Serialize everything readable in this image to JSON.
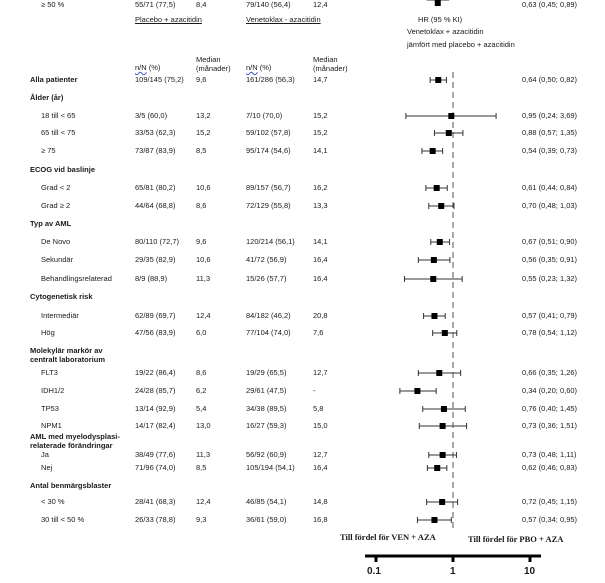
{
  "headers": {
    "placebo_group": "Placebo + azacitidin",
    "venetoclax_group": "Venetoklax - azacitidin",
    "nn_label": "n/N",
    "pct_label": " (%)",
    "median_label_1": "Median",
    "median_label_2": "(månader)",
    "hr_title": "HR (95 % KI)",
    "hr_sub1": "Venetoklax + azacitidin",
    "hr_sub2": "jämfört med placebo + azacitidin"
  },
  "favor_left": "Till fördel för VEN + AZA",
  "favor_right": "Till fördel för PBO + AZA",
  "chart_data": {
    "type": "forest",
    "title": "HR (95 % KI) Venetoklax + azacitidin jämfört med placebo + azacitidin",
    "xscale": "log",
    "xlim": [
      0.1,
      10
    ],
    "xticks": [
      "0.1",
      "1",
      "10"
    ],
    "reference_line": 1,
    "rows": [
      {
        "kind": "row",
        "label": "Alla patienter",
        "bold": true,
        "pbo_nn": "109/145 (75,2)",
        "pbo_med": "9,6",
        "ven_nn": "161/286 (56,3)",
        "ven_med": "14,7",
        "hr": 0.64,
        "lo": 0.5,
        "hi": 0.82,
        "hr_text": "0,64 (0,50; 0,82)"
      },
      {
        "kind": "group",
        "label": "Ålder (år)"
      },
      {
        "kind": "row",
        "label": "18 till < 65",
        "pbo_nn": "3/5 (60,0)",
        "pbo_med": "13,2",
        "ven_nn": "7/10 (70,0)",
        "ven_med": "15,2",
        "hr": 0.95,
        "lo": 0.24,
        "hi": 3.69,
        "hr_text": "0,95 (0,24; 3,69)"
      },
      {
        "kind": "row",
        "label": "65 till < 75",
        "pbo_nn": "33/53 (62,3)",
        "pbo_med": "15,2",
        "ven_nn": "59/102 (57,8)",
        "ven_med": "15,2",
        "hr": 0.88,
        "lo": 0.57,
        "hi": 1.35,
        "hr_text": "0,88 (0,57; 1,35)"
      },
      {
        "kind": "row",
        "label": "≥ 75",
        "pbo_nn": "73/87 (83,9)",
        "pbo_med": "8,5",
        "ven_nn": "95/174 (54,6)",
        "ven_med": "14,1",
        "hr": 0.54,
        "lo": 0.39,
        "hi": 0.73,
        "hr_text": "0,54 (0,39; 0,73)"
      },
      {
        "kind": "group",
        "label": "ECOG vid baslinje"
      },
      {
        "kind": "row",
        "label": "Grad < 2",
        "pbo_nn": "65/81 (80,2)",
        "pbo_med": "10,6",
        "ven_nn": "89/157 (56,7)",
        "ven_med": "16,2",
        "hr": 0.61,
        "lo": 0.44,
        "hi": 0.84,
        "hr_text": "0,61 (0,44; 0,84)"
      },
      {
        "kind": "row",
        "label": "Grad ≥ 2",
        "pbo_nn": "44/64 (68,8)",
        "pbo_med": "8,6",
        "ven_nn": "72/129 (55,8)",
        "ven_med": "13,3",
        "hr": 0.7,
        "lo": 0.48,
        "hi": 1.03,
        "hr_text": "0,70 (0,48; 1,03)"
      },
      {
        "kind": "group",
        "label": "Typ av AML"
      },
      {
        "kind": "row",
        "label": "De Novo",
        "pbo_nn": "80/110 (72,7)",
        "pbo_med": "9,6",
        "ven_nn": "120/214 (56,1)",
        "ven_med": "14,1",
        "hr": 0.67,
        "lo": 0.51,
        "hi": 0.9,
        "hr_text": "0,67 (0,51; 0,90)"
      },
      {
        "kind": "row",
        "label": "Sekundär",
        "pbo_nn": "29/35 (82,9)",
        "pbo_med": "10,6",
        "ven_nn": "41/72 (56,9)",
        "ven_med": "16,4",
        "hr": 0.56,
        "lo": 0.35,
        "hi": 0.91,
        "hr_text": "0,56 (0,35; 0,91)"
      },
      {
        "kind": "row",
        "label": "Behandlingsrelaterad",
        "pbo_nn": "8/9 (88,9)",
        "pbo_med": "11,3",
        "ven_nn": "15/26 (57,7)",
        "ven_med": "16,4",
        "hr": 0.55,
        "lo": 0.23,
        "hi": 1.32,
        "hr_text": "0,55 (0,23; 1,32)"
      },
      {
        "kind": "group",
        "label": "Cytogenetisk risk"
      },
      {
        "kind": "row",
        "label": "Intermediär",
        "pbo_nn": "62/89 (69,7)",
        "pbo_med": "12,4",
        "ven_nn": "84/182 (46,2)",
        "ven_med": "20,8",
        "hr": 0.57,
        "lo": 0.41,
        "hi": 0.79,
        "hr_text": "0,57 (0,41; 0,79)"
      },
      {
        "kind": "row",
        "label": "Hög",
        "pbo_nn": "47/56 (83,9)",
        "pbo_med": "6,0",
        "ven_nn": "77/104 (74,0)",
        "ven_med": "7,6",
        "hr": 0.78,
        "lo": 0.54,
        "hi": 1.12,
        "hr_text": "0,78 (0,54; 1,12)"
      },
      {
        "kind": "group",
        "label": "Molekylär markör av",
        "label2": "centralt laboratorium"
      },
      {
        "kind": "row",
        "label": "FLT3",
        "pbo_nn": "19/22 (86,4)",
        "pbo_med": "8,6",
        "ven_nn": "19/29 (65,5)",
        "ven_med": "12,7",
        "hr": 0.66,
        "lo": 0.35,
        "hi": 1.26,
        "hr_text": "0,66 (0,35; 1,26)"
      },
      {
        "kind": "row",
        "label": "IDH1/2",
        "pbo_nn": "24/28 (85,7)",
        "pbo_med": "6,2",
        "ven_nn": "29/61 (47,5)",
        "ven_med": "-",
        "hr": 0.34,
        "lo": 0.2,
        "hi": 0.6,
        "hr_text": "0,34 (0,20; 0,60)"
      },
      {
        "kind": "row",
        "label": "TP53",
        "pbo_nn": "13/14 (92,9)",
        "pbo_med": "5,4",
        "ven_nn": "34/38 (89,5)",
        "ven_med": "5,8",
        "hr": 0.76,
        "lo": 0.4,
        "hi": 1.45,
        "hr_text": "0,76 (0,40; 1,45)"
      },
      {
        "kind": "row",
        "label": "NPM1",
        "pbo_nn": "14/17 (82,4)",
        "pbo_med": "13,0",
        "ven_nn": "16/27 (59,3)",
        "ven_med": "15,0",
        "hr": 0.73,
        "lo": 0.36,
        "hi": 1.51,
        "hr_text": "0,73 (0,36; 1,51)"
      },
      {
        "kind": "group",
        "label": "AML med myelodysplasi-",
        "label2": "relaterade förändringar"
      },
      {
        "kind": "row",
        "label": "Ja",
        "pbo_nn": "38/49 (77,6)",
        "pbo_med": "11,3",
        "ven_nn": "56/92 (60,9)",
        "ven_med": "12,7",
        "hr": 0.73,
        "lo": 0.48,
        "hi": 1.11,
        "hr_text": "0,73 (0,48; 1,11)"
      },
      {
        "kind": "row",
        "label": "Nej",
        "pbo_nn": "71/96 (74,0)",
        "pbo_med": "8,5",
        "ven_nn": "105/194 (54,1)",
        "ven_med": "16,4",
        "hr": 0.62,
        "lo": 0.46,
        "hi": 0.83,
        "hr_text": "0,62 (0,46; 0,83)"
      },
      {
        "kind": "group",
        "label": "Antal benmärgsblaster"
      },
      {
        "kind": "row",
        "label": "< 30 %",
        "pbo_nn": "28/41 (68,3)",
        "pbo_med": "12,4",
        "ven_nn": "46/85 (54,1)",
        "ven_med": "14,8",
        "hr": 0.72,
        "lo": 0.45,
        "hi": 1.15,
        "hr_text": "0,72 (0,45; 1,15)"
      },
      {
        "kind": "row",
        "label": "30 till < 50 %",
        "pbo_nn": "26/33 (78,8)",
        "pbo_med": "9,3",
        "ven_nn": "36/61 (59,0)",
        "ven_med": "16,8",
        "hr": 0.57,
        "lo": 0.34,
        "hi": 0.95,
        "hr_text": "0,57 (0,34; 0,95)"
      },
      {
        "kind": "row",
        "label": "≥ 50 %",
        "pbo_nn": "55/71 (77,5)",
        "pbo_med": "8,4",
        "ven_nn": "79/140 (56,4)",
        "ven_med": "12,4",
        "hr": 0.63,
        "lo": 0.45,
        "hi": 0.89,
        "hr_text": "0,63 (0,45; 0,89)"
      }
    ]
  }
}
